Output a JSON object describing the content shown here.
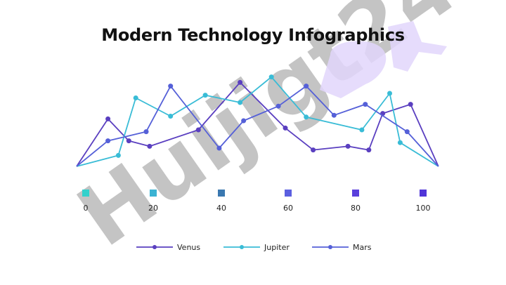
{
  "slide": {
    "title": "Modern Technology Infographics"
  },
  "watermark": {
    "text": "Huijigt24",
    "color_gray": "#c4c4c4",
    "color_purple": "#e2d6fb"
  },
  "chart_data": {
    "type": "line",
    "title": "Modern Technology Infographics",
    "xlabel": "",
    "ylabel": "",
    "x_ticks": [
      0,
      20,
      40,
      60,
      80,
      100
    ],
    "tick_marker_colors": [
      "#33d1cc",
      "#3bb3d3",
      "#3a78b0",
      "#5b5fe0",
      "#5a3fdc",
      "#5035d8"
    ],
    "xlim": [
      0,
      100
    ],
    "ylim": [
      0,
      100
    ],
    "grid": false,
    "legend_position": "bottom",
    "series": [
      {
        "name": "Venus",
        "color": "#5a3fc0",
        "points": [
          [
            0,
            0
          ],
          [
            9,
            52
          ],
          [
            15,
            28
          ],
          [
            21,
            22
          ],
          [
            35,
            40
          ],
          [
            47,
            92
          ],
          [
            60,
            42
          ],
          [
            68,
            18
          ],
          [
            78,
            22
          ],
          [
            84,
            18
          ],
          [
            88,
            58
          ],
          [
            96,
            68
          ],
          [
            104,
            0
          ]
        ]
      },
      {
        "name": "Jupiter",
        "color": "#39bcd6",
        "points": [
          [
            0,
            0
          ],
          [
            12,
            12
          ],
          [
            17,
            75
          ],
          [
            27,
            55
          ],
          [
            37,
            78
          ],
          [
            47,
            70
          ],
          [
            56,
            98
          ],
          [
            66,
            54
          ],
          [
            82,
            40
          ],
          [
            90,
            80
          ],
          [
            93,
            26
          ],
          [
            104,
            0
          ]
        ]
      },
      {
        "name": "Mars",
        "color": "#5560d8",
        "points": [
          [
            0,
            0
          ],
          [
            9,
            28
          ],
          [
            20,
            38
          ],
          [
            27,
            88
          ],
          [
            41,
            20
          ],
          [
            48,
            50
          ],
          [
            58,
            66
          ],
          [
            66,
            88
          ],
          [
            74,
            56
          ],
          [
            83,
            68
          ],
          [
            95,
            38
          ],
          [
            104,
            0
          ]
        ]
      }
    ]
  }
}
